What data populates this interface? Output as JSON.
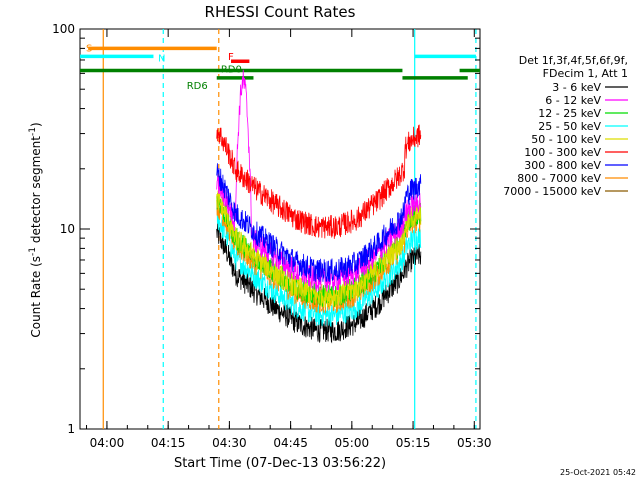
{
  "chart_data": {
    "type": "line",
    "title": "RHESSI Count Rates",
    "xlabel": "Start Time (07-Dec-13 03:56:22)",
    "ylabel": "Count Rate (s⁻¹ detector segment⁻¹)",
    "ylabel_main": "Count Rate (s",
    "ylabel_mid": " detector segment",
    "ylabel_end": ")",
    "ylabel_sup": "-1",
    "yscale": "log",
    "ylim": [
      1,
      100
    ],
    "xlim_minutes": [
      -3,
      95
    ],
    "x_ticks": [
      {
        "label": "04:00",
        "minutes": 3.6
      },
      {
        "label": "04:15",
        "minutes": 18.6
      },
      {
        "label": "04:30",
        "minutes": 33.6
      },
      {
        "label": "04:45",
        "minutes": 48.6
      },
      {
        "label": "05:00",
        "minutes": 63.6
      },
      {
        "label": "05:15",
        "minutes": 78.6
      },
      {
        "label": "05:30",
        "minutes": 93.6
      }
    ],
    "y_ticks": [
      {
        "label": "1",
        "value": 1
      },
      {
        "label": "10",
        "value": 10
      },
      {
        "label": "100",
        "value": 100
      }
    ],
    "legend": {
      "placement": "right",
      "header_line1": "Det 1f,3f,4f,5f,6f,9f,",
      "header_line2": "FDecim 1, Att 1",
      "entries": [
        {
          "label": "3 - 6 keV",
          "color": "#000000"
        },
        {
          "label": "6 - 12 keV",
          "color": "#ff00ff"
        },
        {
          "label": "12 - 25 keV",
          "color": "#00dd00"
        },
        {
          "label": "25 - 50 keV",
          "color": "#00ffff"
        },
        {
          "label": "50 - 100 keV",
          "color": "#dddd00"
        },
        {
          "label": "100 - 300 keV",
          "color": "#ff0000"
        },
        {
          "label": "300 - 800 keV",
          "color": "#0000ff"
        },
        {
          "label": "800 - 7000 keV",
          "color": "#ff8c00"
        },
        {
          "label": "7000 - 15000 keV",
          "color": "#8b5a00"
        }
      ]
    },
    "series_shape": {
      "x_min": [
        30,
        35,
        40,
        45,
        50,
        55,
        60,
        65,
        70,
        75,
        78,
        80
      ],
      "relative": [
        1.0,
        0.6,
        0.48,
        0.4,
        0.34,
        0.31,
        0.31,
        0.34,
        0.42,
        0.55,
        0.68,
        0.72
      ]
    },
    "series": [
      {
        "name": "3 - 6 keV",
        "color": "#000000",
        "start": 10,
        "gap_factor": 1.2
      },
      {
        "name": "25 - 50 keV",
        "color": "#00ffff",
        "start": 12,
        "gap_factor": 1.25
      },
      {
        "name": "800 - 7000 keV",
        "color": "#ff8c00",
        "start": 14,
        "gap_factor": 1.3
      },
      {
        "name": "12 - 25 keV",
        "color": "#00dd00",
        "start": 15,
        "gap_factor": 1.3
      },
      {
        "name": "50 - 100 keV",
        "color": "#dddd00",
        "start": 15,
        "gap_factor": 1.3
      },
      {
        "name": "6 - 12 keV",
        "color": "#ff00ff",
        "start": 18,
        "gap_factor": 1.25,
        "peak": 55,
        "peak_at": 37
      },
      {
        "name": "300 - 800 keV",
        "color": "#0000ff",
        "start": 20,
        "gap_factor": 1.35
      },
      {
        "name": "100 - 300 keV",
        "color": "#ff0000",
        "start": 33,
        "gap_factor": 1.45
      }
    ],
    "annotations": {
      "flag_bars": [
        {
          "label": "S",
          "color": "#ff8c00",
          "y": 80,
          "x_start": -1,
          "x_end": 30.5
        },
        {
          "label": "N",
          "color": "#00ffff",
          "y": 73,
          "x_start": -3,
          "x_end": 15
        },
        {
          "label": "",
          "color": "#00ffff",
          "y": 73,
          "x_start": 79,
          "x_end": 94
        },
        {
          "label": "F",
          "color": "#ff0000",
          "y": 69,
          "x_start": 34,
          "x_end": 38.5
        },
        {
          "label": "RD0",
          "color": "#008000",
          "y": 62,
          "x_start": -3,
          "x_end": 76
        },
        {
          "label": "RD6",
          "color": "#008000",
          "y": 57,
          "x_start": 30.5,
          "x_end": 39.5
        },
        {
          "label": "",
          "color": "#008000",
          "y": 57,
          "x_start": 76,
          "x_end": 92
        },
        {
          "label": "",
          "color": "#008000",
          "y": 62,
          "x_start": 90,
          "x_end": 95
        }
      ],
      "vertical_lines": [
        {
          "minutes": 2.7,
          "color": "#ff8c00",
          "style": "solid"
        },
        {
          "minutes": 17.4,
          "color": "#00ffff",
          "style": "dashed"
        },
        {
          "minutes": 31.0,
          "color": "#ff8c00",
          "style": "dashed"
        },
        {
          "minutes": 79.0,
          "color": "#00ffff",
          "style": "solid"
        },
        {
          "minutes": 94.0,
          "color": "#00ffff",
          "style": "dashed"
        }
      ]
    },
    "footer_timestamp": "25-Oct-2021 05:42"
  }
}
